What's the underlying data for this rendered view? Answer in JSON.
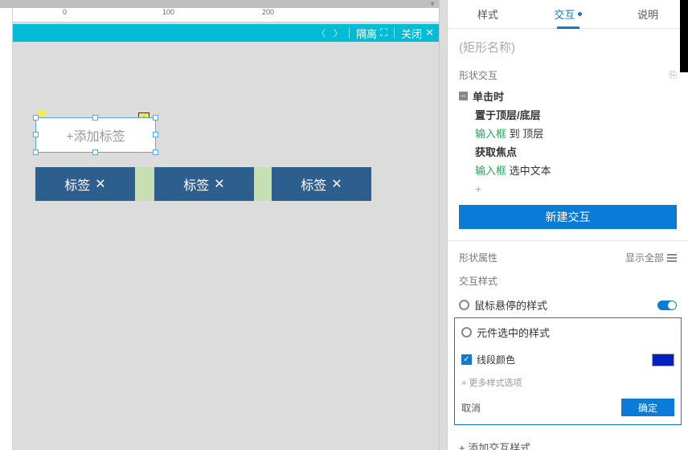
{
  "ruler": {
    "marks": [
      "0",
      "100",
      "200"
    ]
  },
  "canvas_strip": {
    "isolate": "隔离",
    "close": "关闭"
  },
  "canvas": {
    "add_tag_placeholder": "+添加标签",
    "tags": [
      "标签",
      "标签",
      "标签"
    ]
  },
  "panel": {
    "tabs": {
      "style": "样式",
      "interact": "交互",
      "note": "说明"
    },
    "shape_name_placeholder": "(矩形名称)",
    "section_interact": "形状交互",
    "event_click": "单击时",
    "action_bring": "置于顶层/底层",
    "action_bring_target": "输入框",
    "action_bring_suffix": "到 顶层",
    "action_focus": "获取焦点",
    "action_focus_target": "输入框",
    "action_focus_suffix": "选中文本",
    "new_interaction": "新建交互",
    "section_props": "形状属性",
    "show_all": "显示全部",
    "section_ixstyle": "交互样式",
    "hover_style": "鼠标悬停的样式",
    "selected_style": "元件选中的样式",
    "line_color": "线段颜色",
    "more_options": "+ 更多样式选项",
    "cancel": "取消",
    "ok": "确定",
    "add_ix_style": "+  添加交互样式",
    "colors": {
      "accent": "#0a7bd6",
      "swatch": "#0020c2",
      "tag_bg": "#2c5f8d",
      "green_bar": "#c6e0b4",
      "cyan": "#00bcd4"
    }
  }
}
